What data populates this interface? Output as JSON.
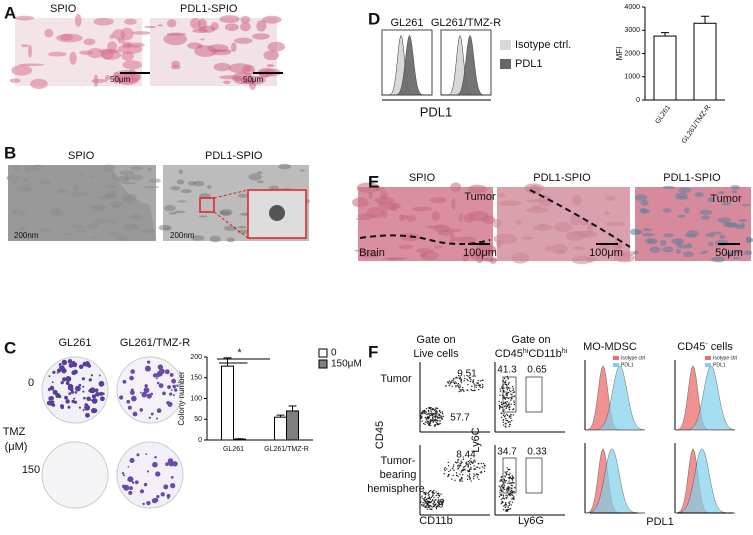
{
  "panels": [
    {
      "label": "A",
      "titles": [
        "SPIO",
        "PDL1-SPIO"
      ],
      "scale_bars": [
        "50μm",
        "50μm"
      ]
    },
    {
      "label": "B",
      "titles": [
        "SPIO",
        "PDL1-SPIO"
      ],
      "scale_bars": [
        "200nm",
        "200nm"
      ]
    },
    {
      "label": "C",
      "columns": [
        "GL261",
        "GL261/TMZ-R"
      ],
      "rows": [
        "0",
        "150"
      ],
      "row_axis": [
        "TMZ",
        "(μM)"
      ],
      "chart": {
        "type": "bar",
        "categories": [
          "GL261",
          "GL261/TMZ-R"
        ],
        "series": [
          {
            "name": "0",
            "color": "#ffffff",
            "values": [
              178,
              55
            ],
            "errors": [
              20,
              5
            ]
          },
          {
            "name": "150μM",
            "color": "#808080",
            "values": [
              2,
              70
            ],
            "errors": [
              1,
              12
            ]
          }
        ],
        "ylabel": "Colony number",
        "ylim": [
          0,
          200
        ],
        "yticks": [
          0,
          50,
          100,
          150,
          200
        ],
        "annotation": "*"
      }
    },
    {
      "label": "D",
      "histogram_titles": [
        "GL261",
        "GL261/TMZ-R"
      ],
      "legend": [
        "Isotype ctrl.",
        "PDL1"
      ],
      "xlabel": "PDL1",
      "chart": {
        "type": "bar",
        "categories": [
          "GL261",
          "GL261/TMZ-R"
        ],
        "values": [
          2750,
          3300
        ],
        "errors": [
          150,
          300
        ],
        "color": "#ffffff",
        "ylabel": "MFI",
        "ylim": [
          0,
          4000
        ],
        "yticks": [
          0,
          1000,
          2000,
          3000,
          4000
        ]
      }
    },
    {
      "label": "E",
      "titles": [
        "SPIO",
        "PDL1-SPIO",
        "PDL1-SPIO"
      ],
      "region_labels": [
        "Tumor",
        "Brain",
        "Tumor"
      ],
      "scale_bars": [
        "100μm",
        "100μm",
        "50μm"
      ]
    },
    {
      "label": "F",
      "live_title": [
        "Gate on",
        "Live cells"
      ],
      "gated_title": [
        "Gate on",
        "CD45",
        "hi",
        "CD11b",
        "hi"
      ],
      "mdsc_title": "MO-MDSC",
      "cd45neg_title": [
        "CD45",
        "-",
        " cells"
      ],
      "row_tumor": "Tumor",
      "row_hemisphere": [
        "Tumor-",
        "bearing",
        "hemisphere"
      ],
      "axes": [
        "CD45",
        "CD11b",
        "Ly6C",
        "Ly6G",
        "PDL1"
      ],
      "gates_tumor": [
        9.51,
        57.7,
        41.3,
        0.65
      ],
      "gates_hemisphere": [
        8.44,
        33.9,
        34.7,
        0.33
      ],
      "legend": [
        "Isotype ctrl",
        "PDL1"
      ]
    }
  ]
}
